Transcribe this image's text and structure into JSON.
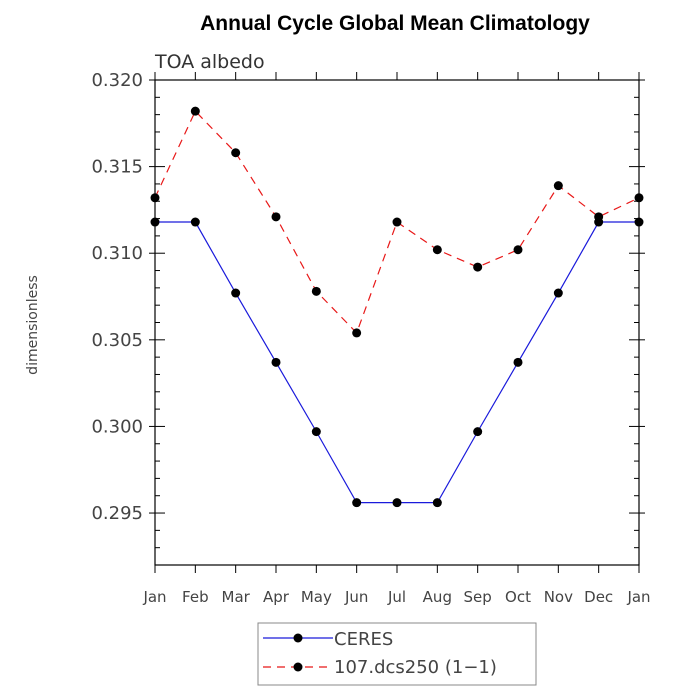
{
  "chart_data": {
    "type": "line",
    "title": "Annual Cycle Global Mean Climatology",
    "subtitle": "TOA albedo",
    "xlabel": "",
    "ylabel": "dimensionless",
    "categories": [
      "Jan",
      "Feb",
      "Mar",
      "Apr",
      "May",
      "Jun",
      "Jul",
      "Aug",
      "Sep",
      "Oct",
      "Nov",
      "Dec",
      "Jan"
    ],
    "ylim": [
      0.292,
      0.32
    ],
    "yticks": [
      0.295,
      0.3,
      0.305,
      0.31,
      0.315,
      0.32
    ],
    "ytick_labels": [
      "0.295",
      "0.300",
      "0.305",
      "0.310",
      "0.315",
      "0.320"
    ],
    "series": [
      {
        "name": "CERES",
        "color": "#1a1adb",
        "style": "solid",
        "values": [
          0.3118,
          0.3118,
          0.3077,
          0.3037,
          0.2997,
          0.2956,
          0.2956,
          0.2956,
          0.2997,
          0.3037,
          0.3077,
          0.3118,
          0.3118
        ]
      },
      {
        "name": "107.dcs250 (1−1)",
        "color": "#e81818",
        "style": "dashed",
        "values": [
          0.3132,
          0.3182,
          0.3158,
          0.3121,
          0.3078,
          0.3054,
          0.3118,
          0.3102,
          0.3092,
          0.3102,
          0.3139,
          0.3121,
          0.3132
        ]
      }
    ],
    "legend_position": "bottom"
  }
}
